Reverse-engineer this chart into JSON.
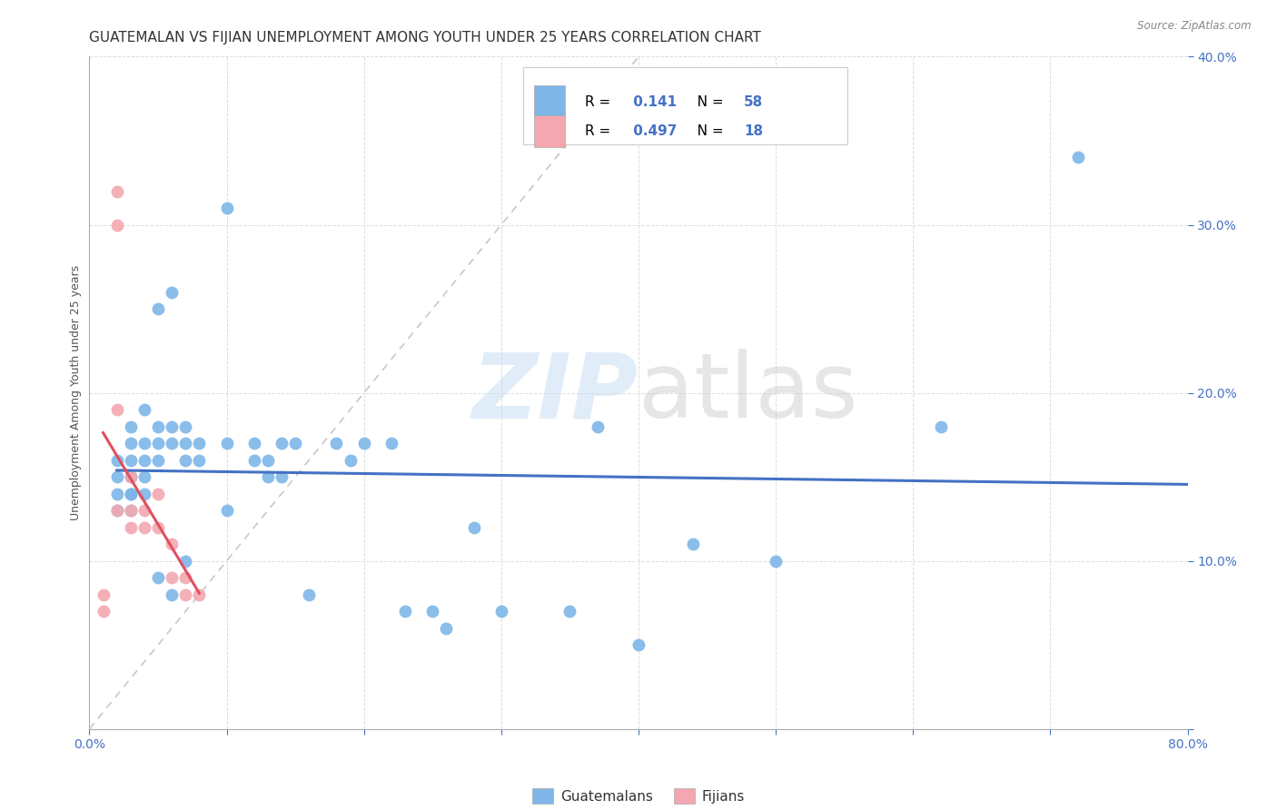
{
  "title": "GUATEMALAN VS FIJIAN UNEMPLOYMENT AMONG YOUTH UNDER 25 YEARS CORRELATION CHART",
  "source": "Source: ZipAtlas.com",
  "ylabel": "Unemployment Among Youth under 25 years",
  "xlim": [
    0.0,
    0.8
  ],
  "ylim": [
    0.0,
    0.4
  ],
  "xticks": [
    0.0,
    0.1,
    0.2,
    0.3,
    0.4,
    0.5,
    0.6,
    0.7,
    0.8
  ],
  "yticks": [
    0.0,
    0.1,
    0.2,
    0.3,
    0.4
  ],
  "xticklabels": [
    "0.0%",
    "",
    "",
    "",
    "",
    "",
    "",
    "",
    "80.0%"
  ],
  "yticklabels": [
    "",
    "10.0%",
    "20.0%",
    "30.0%",
    "40.0%"
  ],
  "guatemalan_color": "#7EB6E8",
  "fijian_color": "#F4A7B0",
  "guatemalan_line_color": "#4472C4",
  "fijian_line_color": "#E05060",
  "diag_line_color": "#C8C8C8",
  "R_guatemalan": 0.141,
  "N_guatemalan": 58,
  "R_fijian": 0.497,
  "N_fijian": 18,
  "watermark_zip": "ZIP",
  "watermark_atlas": "atlas",
  "tick_color": "#4472C4",
  "title_fontsize": 11,
  "axis_label_fontsize": 9,
  "tick_fontsize": 10,
  "guatemalan_x": [
    0.02,
    0.02,
    0.02,
    0.02,
    0.03,
    0.03,
    0.03,
    0.03,
    0.03,
    0.03,
    0.03,
    0.04,
    0.04,
    0.04,
    0.04,
    0.04,
    0.05,
    0.05,
    0.05,
    0.05,
    0.05,
    0.06,
    0.06,
    0.06,
    0.06,
    0.07,
    0.07,
    0.07,
    0.07,
    0.08,
    0.08,
    0.1,
    0.1,
    0.1,
    0.12,
    0.12,
    0.13,
    0.13,
    0.14,
    0.14,
    0.15,
    0.16,
    0.18,
    0.19,
    0.2,
    0.22,
    0.23,
    0.25,
    0.26,
    0.28,
    0.3,
    0.35,
    0.37,
    0.4,
    0.44,
    0.5,
    0.62,
    0.72
  ],
  "guatemalan_y": [
    0.16,
    0.15,
    0.14,
    0.13,
    0.18,
    0.17,
    0.16,
    0.15,
    0.14,
    0.14,
    0.13,
    0.19,
    0.17,
    0.16,
    0.15,
    0.14,
    0.25,
    0.18,
    0.17,
    0.16,
    0.09,
    0.26,
    0.18,
    0.17,
    0.08,
    0.18,
    0.17,
    0.16,
    0.1,
    0.17,
    0.16,
    0.31,
    0.17,
    0.13,
    0.17,
    0.16,
    0.16,
    0.15,
    0.17,
    0.15,
    0.17,
    0.08,
    0.17,
    0.16,
    0.17,
    0.17,
    0.07,
    0.07,
    0.06,
    0.12,
    0.07,
    0.07,
    0.18,
    0.05,
    0.11,
    0.1,
    0.18,
    0.34
  ],
  "fijian_x": [
    0.01,
    0.01,
    0.02,
    0.02,
    0.02,
    0.02,
    0.03,
    0.03,
    0.03,
    0.04,
    0.04,
    0.05,
    0.05,
    0.06,
    0.06,
    0.07,
    0.07,
    0.08
  ],
  "fijian_y": [
    0.08,
    0.07,
    0.32,
    0.3,
    0.19,
    0.13,
    0.15,
    0.13,
    0.12,
    0.13,
    0.12,
    0.14,
    0.12,
    0.11,
    0.09,
    0.09,
    0.08,
    0.08
  ]
}
